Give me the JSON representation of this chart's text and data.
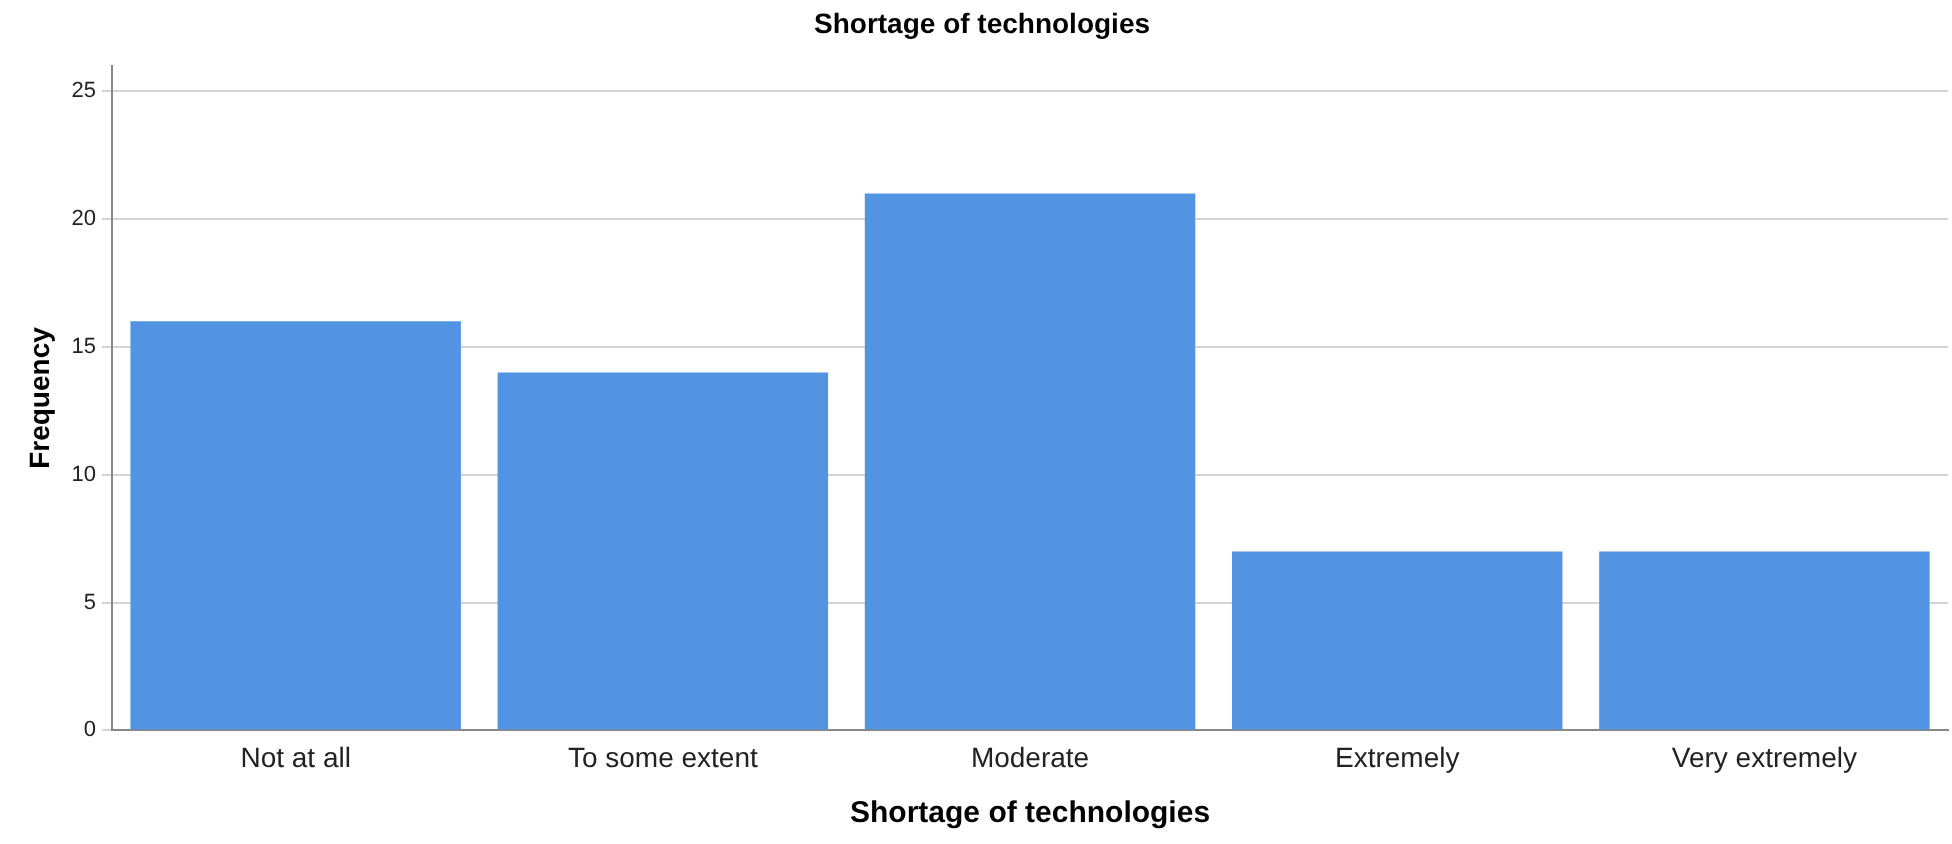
{
  "chart_data": {
    "type": "bar",
    "title": "Shortage of technologies",
    "xlabel": "Shortage of technologies",
    "ylabel": "Frequency",
    "categories": [
      "Not at all",
      "To some extent",
      "Moderate",
      "Extremely",
      "Very extremely"
    ],
    "values": [
      16,
      14,
      21,
      7,
      7
    ],
    "color": "#5294e2",
    "ylim": [
      0,
      26
    ],
    "yticks": [
      0,
      5,
      10,
      15,
      20,
      25
    ],
    "grid": "y",
    "legend": false
  }
}
